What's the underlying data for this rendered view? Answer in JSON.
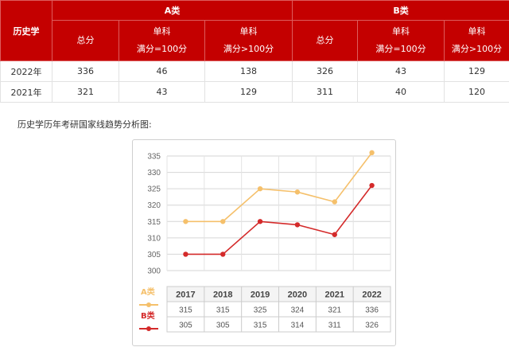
{
  "table": {
    "subject": "历史学",
    "group_a": "A类",
    "group_b": "B类",
    "col_total": "总分",
    "col_single": "单科",
    "col_full_eq": "满分=100分",
    "col_full_gt": "满分>100分",
    "rows": [
      {
        "year": "2022年",
        "a_total": "336",
        "a_s100": "46",
        "a_sgt": "138",
        "b_total": "326",
        "b_s100": "43",
        "b_sgt": "129"
      },
      {
        "year": "2021年",
        "a_total": "321",
        "a_s100": "43",
        "a_sgt": "129",
        "b_total": "311",
        "b_s100": "40",
        "b_sgt": "120"
      }
    ]
  },
  "caption": "历史学历年考研国家线趋势分析图:",
  "chart_data": {
    "type": "line",
    "categories": [
      "2017",
      "2018",
      "2019",
      "2020",
      "2021",
      "2022"
    ],
    "ylim": [
      300,
      335
    ],
    "yticks": [
      300,
      305,
      310,
      315,
      320,
      325,
      330,
      335
    ],
    "grid": true,
    "legend": "bottom-left, in data table",
    "series": [
      {
        "name": "A类",
        "values": [
          315,
          315,
          325,
          324,
          321,
          336
        ],
        "color": "#f5c06b"
      },
      {
        "name": "B类",
        "values": [
          305,
          305,
          315,
          314,
          311,
          326
        ],
        "color": "#d42a2a"
      }
    ]
  },
  "colors": {
    "header_red": "#c40000"
  }
}
